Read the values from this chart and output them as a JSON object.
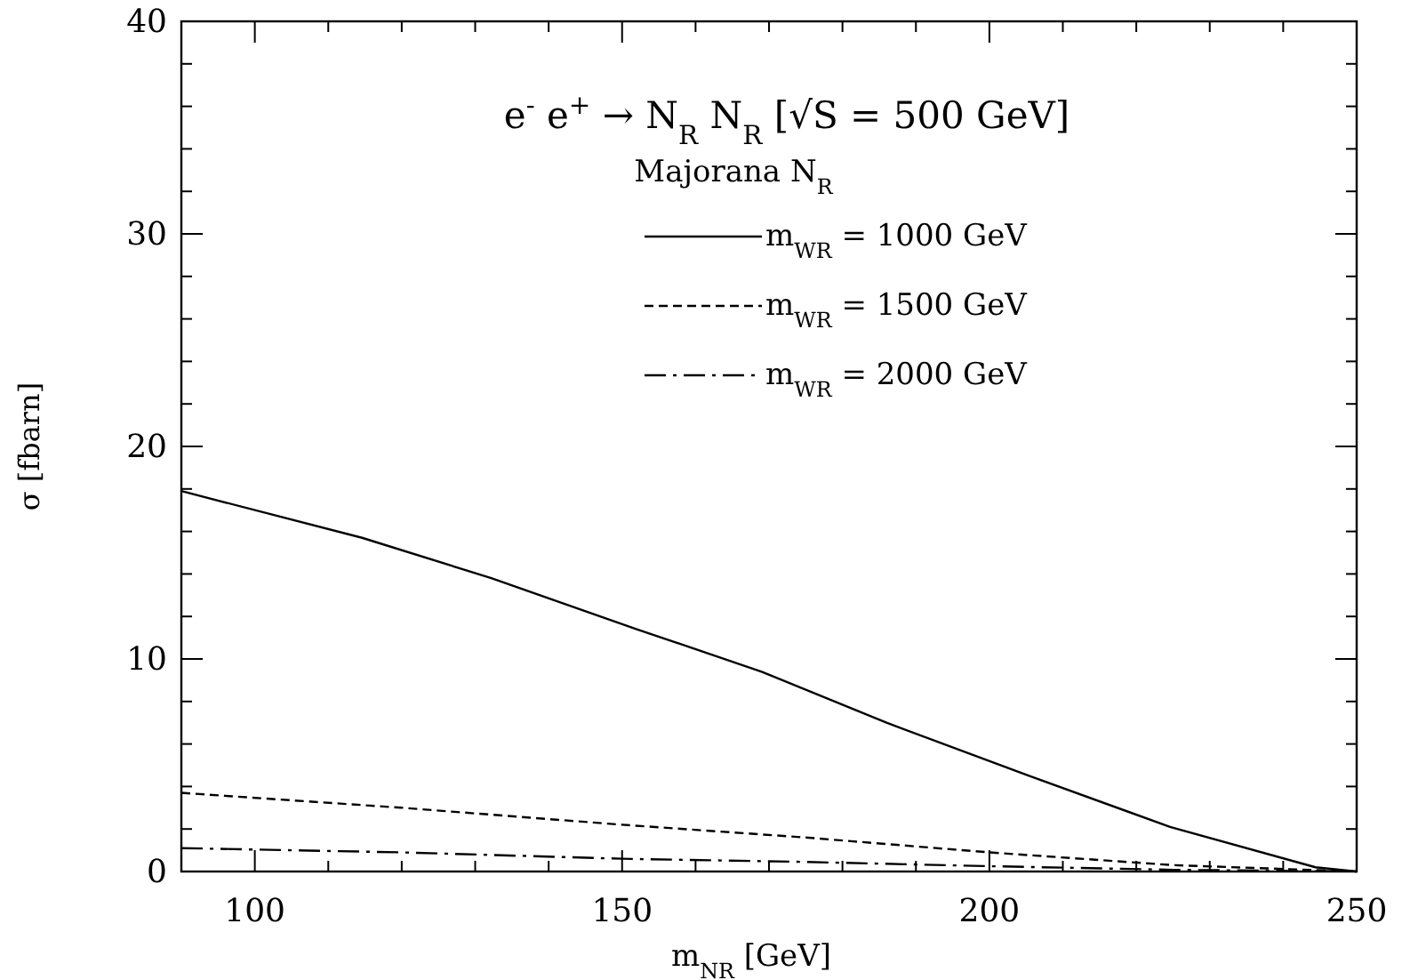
{
  "chart_data": {
    "type": "line",
    "title": "e$^{-}$ e$^{+}$ → N$_{R}$ N$_{R}$  [√S = 500 GeV]",
    "legend_title": "Majorana N$_{R}$",
    "xlabel": "m$_{NR}$ [GeV]",
    "ylabel": "σ [fbarn]",
    "xlim": [
      90,
      250
    ],
    "ylim": [
      0,
      40
    ],
    "xticks": [
      {
        "value": 90,
        "label": null
      },
      100,
      {
        "value": 110,
        "label": null
      },
      {
        "value": 120,
        "label": null
      },
      {
        "value": 130,
        "label": null
      },
      {
        "value": 140,
        "label": null
      },
      150,
      {
        "value": 160,
        "label": null
      },
      {
        "value": 170,
        "label": null
      },
      {
        "value": 180,
        "label": null
      },
      {
        "value": 190,
        "label": null
      },
      200,
      {
        "value": 210,
        "label": null
      },
      {
        "value": 220,
        "label": null
      },
      {
        "value": 230,
        "label": null
      },
      {
        "value": 240,
        "label": null
      },
      250
    ],
    "yticks": [
      0,
      {
        "value": 2,
        "label": null
      },
      {
        "value": 4,
        "label": null
      },
      {
        "value": 6,
        "label": null
      },
      {
        "value": 8,
        "label": null
      },
      10,
      {
        "value": 12,
        "label": null
      },
      {
        "value": 14,
        "label": null
      },
      {
        "value": 16,
        "label": null
      },
      {
        "value": 18,
        "label": null
      },
      20,
      {
        "value": 22,
        "label": null
      },
      {
        "value": 24,
        "label": null
      },
      {
        "value": 26,
        "label": null
      },
      {
        "value": 28,
        "label": null
      },
      30,
      {
        "value": 32,
        "label": null
      },
      {
        "value": 34,
        "label": null
      },
      {
        "value": 36,
        "label": null
      },
      {
        "value": 38,
        "label": null
      },
      40
    ],
    "legend": "top",
    "grid": false,
    "marker": "none",
    "series": [
      {
        "name": "m$_{WR}$ = 1000 GeV",
        "color": "#000000",
        "line_style": "solid",
        "x": [
          90,
          114.6,
          132.2,
          152,
          169,
          186,
          205.4,
          224.6,
          244.4,
          250
        ],
        "values": [
          17.9,
          15.7,
          13.8,
          11.4,
          9.4,
          7.0,
          4.5,
          2.1,
          0.2,
          0
        ]
      },
      {
        "name": "m$_{WR}$ = 1500 GeV",
        "color": "#000000",
        "line_style": "dashed",
        "x": [
          90,
          120,
          150,
          175,
          200,
          225,
          250
        ],
        "values": [
          3.7,
          3.0,
          2.2,
          1.6,
          0.9,
          0.3,
          0
        ]
      },
      {
        "name": "m$_{WR}$ = 2000 GeV",
        "color": "#000000",
        "line_style": "dashdot",
        "x": [
          90,
          120,
          150,
          175,
          200,
          225,
          250
        ],
        "values": [
          1.1,
          0.9,
          0.6,
          0.45,
          0.25,
          0.08,
          0
        ]
      }
    ]
  }
}
